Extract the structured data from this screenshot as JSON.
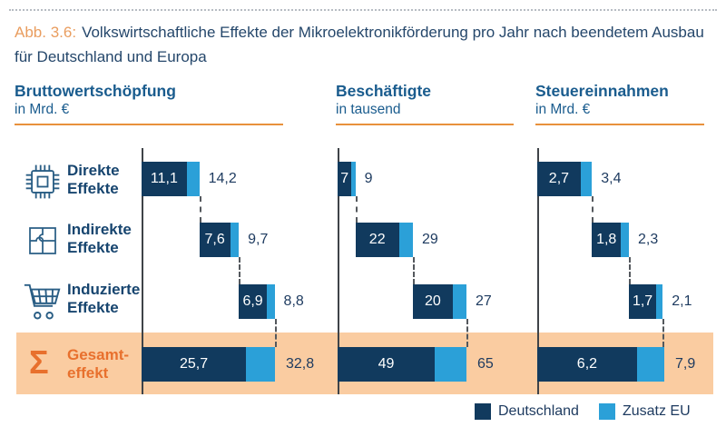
{
  "title": {
    "prefix": "Abb. 3.6:",
    "text": "Volkswirtschaftliche Effekte der Mikroelektronikförderung pro Jahr nach beendetem Ausbau für Deutschland und Europa"
  },
  "row_labels": [
    {
      "label": "Direkte Effekte",
      "icon": "microchip-icon"
    },
    {
      "label": "Indirekte Effekte",
      "icon": "puzzle-icon"
    },
    {
      "label": "Induzierte Effekte",
      "icon": "shopping-cart-icon"
    }
  ],
  "gesamt": {
    "sigma": "Σ",
    "line1": "Gesamt-",
    "line2": "effekt"
  },
  "legend": {
    "items": [
      {
        "label": "Deutschland",
        "color": "#113a5e"
      },
      {
        "label": "Zusatz EU",
        "color": "#2ba0d8"
      }
    ]
  },
  "colors": {
    "deutschland": "#113a5e",
    "zusatz_eu": "#2ba0d8",
    "accent_orange": "#e8702d",
    "band_background": "#facca1",
    "header_blue": "#1a5c8e",
    "title_navy": "#25476b"
  },
  "chart_data": [
    {
      "type": "bar",
      "subtype": "waterfall",
      "title": "Bruttowertschöpfung",
      "unit": "in Mrd. €",
      "series_names": [
        "Deutschland",
        "Zusatz EU"
      ],
      "rows": [
        {
          "label": "Direkte Effekte",
          "deutschland": 11.1,
          "total": 14.2,
          "deutschland_label": "11,1",
          "total_label": "14,2"
        },
        {
          "label": "Indirekte Effekte",
          "deutschland": 7.6,
          "total": 9.7,
          "deutschland_label": "7,6",
          "total_label": "9,7"
        },
        {
          "label": "Induzierte Effekte",
          "deutschland": 6.9,
          "total": 8.8,
          "deutschland_label": "6,9",
          "total_label": "8,8"
        }
      ],
      "gesamt": {
        "label": "Gesamteffekt",
        "deutschland": 25.7,
        "total": 32.8,
        "deutschland_label": "25,7",
        "total_label": "32,8"
      }
    },
    {
      "type": "bar",
      "subtype": "waterfall",
      "title": "Beschäftigte",
      "unit": "in tausend",
      "series_names": [
        "Deutschland",
        "Zusatz EU"
      ],
      "rows": [
        {
          "label": "Direkte Effekte",
          "deutschland": 7,
          "total": 9,
          "deutschland_label": "7",
          "total_label": "9"
        },
        {
          "label": "Indirekte Effekte",
          "deutschland": 22,
          "total": 29,
          "deutschland_label": "22",
          "total_label": "29"
        },
        {
          "label": "Induzierte Effekte",
          "deutschland": 20,
          "total": 27,
          "deutschland_label": "20",
          "total_label": "27"
        }
      ],
      "gesamt": {
        "label": "Gesamteffekt",
        "deutschland": 49,
        "total": 65,
        "deutschland_label": "49",
        "total_label": "65"
      }
    },
    {
      "type": "bar",
      "subtype": "waterfall",
      "title": "Steuereinnahmen",
      "unit": "in Mrd. €",
      "series_names": [
        "Deutschland",
        "Zusatz EU"
      ],
      "rows": [
        {
          "label": "Direkte Effekte",
          "deutschland": 2.7,
          "total": 3.4,
          "deutschland_label": "2,7",
          "total_label": "3,4"
        },
        {
          "label": "Indirekte Effekte",
          "deutschland": 1.8,
          "total": 2.3,
          "deutschland_label": "1,8",
          "total_label": "2,3"
        },
        {
          "label": "Induzierte Effekte",
          "deutschland": 1.7,
          "total": 2.1,
          "deutschland_label": "1,7",
          "total_label": "2,1"
        }
      ],
      "gesamt": {
        "label": "Gesamteffekt",
        "deutschland": 6.2,
        "total": 7.9,
        "deutschland_label": "6,2",
        "total_label": "7,9"
      }
    }
  ]
}
